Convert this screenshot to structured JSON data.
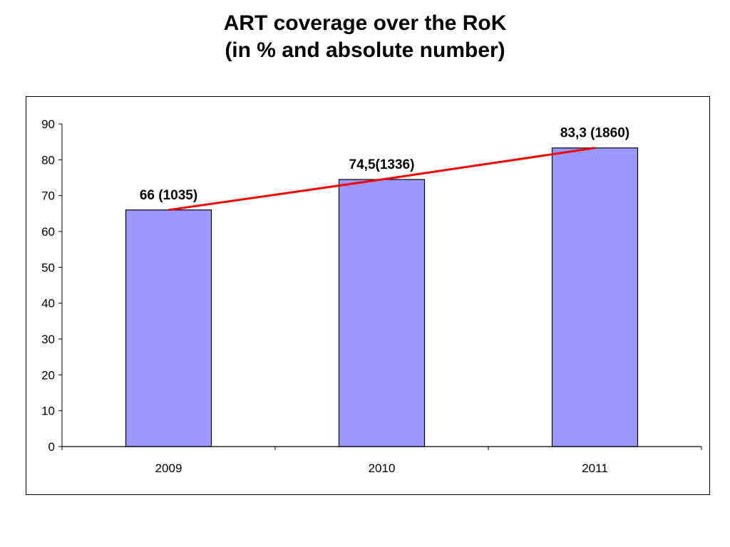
{
  "slide": {
    "title_line1": "ART coverage over the RoK",
    "title_line2": "(in % and absolute number)"
  },
  "chart_data": {
    "type": "bar",
    "categories": [
      "2009",
      "2010",
      "2011"
    ],
    "values": [
      66,
      74.5,
      83.3
    ],
    "data_labels": [
      "66 (1035)",
      "74,5(1336)",
      "83,3 (1860)"
    ],
    "ylim": [
      0,
      90
    ],
    "yticks": [
      0,
      10,
      20,
      30,
      40,
      50,
      60,
      70,
      80,
      90
    ],
    "xlabel": "",
    "ylabel": "",
    "grid": false,
    "legend": "none",
    "bar_color": "#9999ff",
    "bar_edge_color": "#000000",
    "trend_line": {
      "type": "line",
      "color": "#ff0000",
      "values": [
        66,
        74.5,
        83.3
      ]
    }
  }
}
